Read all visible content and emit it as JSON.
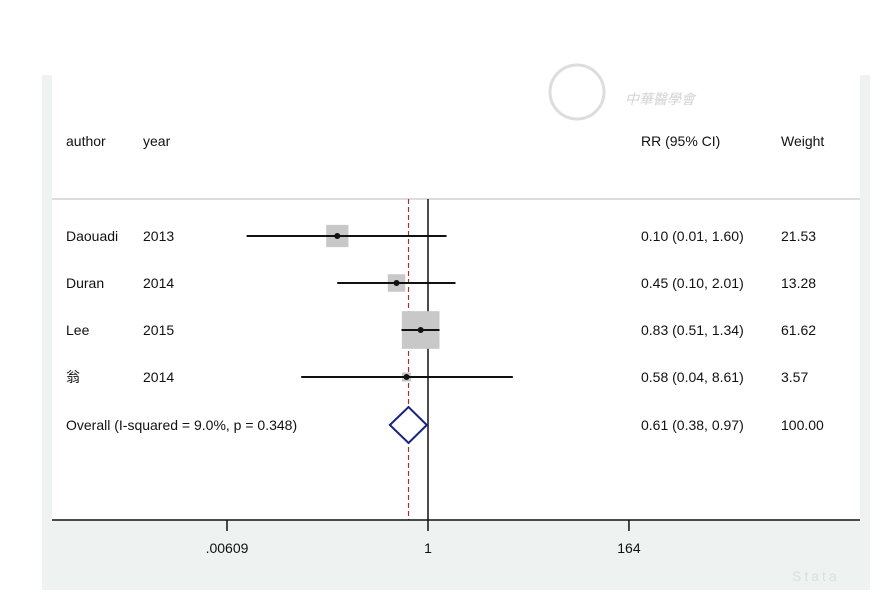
{
  "chart_data": {
    "type": "forest",
    "scale": "log",
    "columns": {
      "author": "author",
      "year": "year",
      "effect": "RR (95% CI)",
      "weight": "Weight"
    },
    "studies": [
      {
        "author": "Daouadi",
        "year": "2013",
        "rr": 0.1,
        "lo": 0.01,
        "hi": 1.6,
        "label": "0.10 (0.01, 1.60)",
        "weight": "21.53",
        "w": 21.53
      },
      {
        "author": "Duran",
        "year": "2014",
        "rr": 0.45,
        "lo": 0.1,
        "hi": 2.01,
        "label": "0.45 (0.10, 2.01)",
        "weight": "13.28",
        "w": 13.28
      },
      {
        "author": "Lee",
        "year": "2015",
        "rr": 0.83,
        "lo": 0.51,
        "hi": 1.34,
        "label": "0.83 (0.51, 1.34)",
        "weight": "61.62",
        "w": 61.62
      },
      {
        "author": "翁",
        "year": "2014",
        "rr": 0.58,
        "lo": 0.04,
        "hi": 8.61,
        "label": "0.58 (0.04, 8.61)",
        "weight": "3.57",
        "w": 3.57
      }
    ],
    "overall": {
      "label_text": "Overall  (I-squared = 9.0%, p = 0.348)",
      "rr": 0.61,
      "lo": 0.38,
      "hi": 0.97,
      "label": "0.61 (0.38, 0.97)",
      "weight": "100.00"
    },
    "xticks": [
      {
        "value": 0.00609,
        "label": ".00609"
      },
      {
        "value": 1,
        "label": "1"
      },
      {
        "value": 164,
        "label": "164"
      }
    ],
    "xlim": [
      0.00609,
      164
    ],
    "reference_line": 1,
    "colors": {
      "box": "#c8c8c8",
      "diamond": "#1a237e",
      "overall_line": "#a0303a",
      "panel": "#eef3f2"
    }
  },
  "watermark": {
    "text": "中華醫學會",
    "badge": "Stata"
  }
}
